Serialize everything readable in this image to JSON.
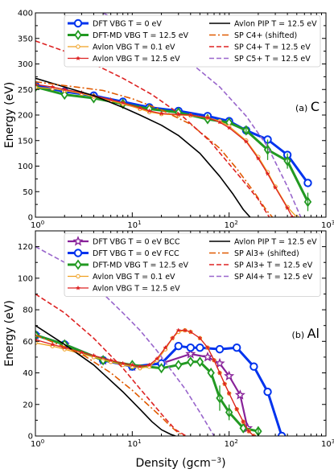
{
  "chart_data": [
    {
      "type": "line",
      "panel_label": "(a) C",
      "xlabel": "",
      "ylabel": "Energy (eV)",
      "xscale": "log",
      "xlim": [
        1,
        1000
      ],
      "ylim": [
        0,
        400
      ],
      "x_ticks": [
        "10^0",
        "10^1",
        "10^2",
        "10^3"
      ],
      "y_ticks": [
        0,
        50,
        100,
        150,
        200,
        250,
        300,
        350,
        400
      ],
      "grid": false,
      "legend_position": "top",
      "legend": [
        "DFT VBG T = 0 eV",
        "DFT-MD VBG T = 12.5 eV",
        "Avlon VBG T = 0.1 eV",
        "Avlon VBG T = 12.5 eV",
        "Avlon PIP T = 12.5 eV",
        "SP C4+ (shifted)",
        "SP C4+ T = 12.5 eV",
        "SP C5+ T = 12.5 eV"
      ],
      "series": [
        {
          "name": "DFT VBG T = 0 eV",
          "color": "#0033ee",
          "style": "solid",
          "marker": "circle",
          "x": [
            1,
            2,
            4,
            8,
            15,
            30,
            60,
            100,
            150,
            250,
            400,
            650
          ],
          "y": [
            258,
            246,
            238,
            226,
            215,
            208,
            198,
            188,
            170,
            152,
            122,
            67
          ]
        },
        {
          "name": "DFT-MD VBG T = 12.5 eV",
          "color": "#229922",
          "style": "solid",
          "marker": "diamond",
          "x": [
            1,
            2,
            4,
            8,
            15,
            30,
            60,
            100,
            150,
            250,
            400,
            650
          ],
          "y": [
            255,
            240,
            233,
            222,
            212,
            205,
            192,
            185,
            170,
            132,
            110,
            30
          ]
        },
        {
          "name": "Avlon VBG T = 0.1 eV",
          "color": "#f0a020",
          "style": "solid",
          "marker": "small-circle",
          "x": [
            1,
            1.5,
            2,
            3,
            4,
            6,
            8,
            12,
            15,
            20,
            30,
            40,
            60,
            80,
            100,
            150,
            200,
            250,
            300,
            400,
            500
          ],
          "y": [
            254,
            252,
            248,
            242,
            236,
            228,
            222,
            212,
            206,
            202,
            200,
            199,
            195,
            188,
            178,
            150,
            118,
            88,
            60,
            20,
            0
          ]
        },
        {
          "name": "Avlon VBG T = 12.5 eV",
          "color": "#dd2222",
          "style": "solid",
          "marker": "small-star",
          "x": [
            1,
            1.5,
            2,
            3,
            4,
            6,
            8,
            12,
            15,
            20,
            30,
            40,
            60,
            80,
            100,
            150,
            200,
            250,
            300,
            400,
            450
          ],
          "y": [
            260,
            255,
            250,
            244,
            238,
            230,
            224,
            214,
            208,
            203,
            201,
            200,
            195,
            186,
            175,
            148,
            115,
            85,
            58,
            18,
            0
          ]
        },
        {
          "name": "Avlon PIP T = 12.5 eV",
          "color": "#000000",
          "style": "solid",
          "marker": "none",
          "x": [
            1,
            2,
            4,
            8,
            12,
            20,
            30,
            50,
            80,
            110,
            140,
            165
          ],
          "y": [
            272,
            255,
            238,
            215,
            200,
            180,
            160,
            125,
            80,
            45,
            15,
            0
          ]
        },
        {
          "name": "SP C4+ (shifted)",
          "color": "#e05a00",
          "style": "dashdot",
          "marker": "none",
          "x": [
            1,
            5,
            10,
            20,
            40,
            80,
            120,
            180,
            240,
            280
          ],
          "y": [
            265,
            248,
            232,
            210,
            182,
            135,
            95,
            50,
            15,
            0
          ]
        },
        {
          "name": "SP C4+ T = 12.5 eV",
          "color": "#dd2222",
          "style": "dashed",
          "marker": "none",
          "x": [
            1,
            2,
            4,
            8,
            16,
            32,
            64,
            128,
            200,
            260
          ],
          "y": [
            345,
            325,
            300,
            272,
            240,
            200,
            148,
            80,
            35,
            0
          ]
        },
        {
          "name": "SP C5+ T = 12.5 eV",
          "color": "#9966cc",
          "style": "dashed",
          "marker": "none",
          "x": [
            5,
            10,
            20,
            40,
            80,
            150,
            250,
            400,
            550
          ],
          "y": [
            400,
            370,
            340,
            302,
            255,
            198,
            138,
            60,
            0
          ]
        }
      ],
      "error_bars": [
        {
          "x": 150,
          "y": 170,
          "err": 8
        },
        {
          "x": 250,
          "y": 132,
          "err": 20
        },
        {
          "x": 400,
          "y": 110,
          "err": 15
        },
        {
          "x": 650,
          "y": 30,
          "err": 18
        }
      ]
    },
    {
      "type": "line",
      "panel_label": "(b) Al",
      "xlabel": "Density (gcm−3)",
      "ylabel": "Energy (eV)",
      "xscale": "log",
      "xlim": [
        1,
        1000
      ],
      "ylim": [
        0,
        130
      ],
      "x_ticks": [
        "10^0",
        "10^1",
        "10^2",
        "10^3"
      ],
      "y_ticks": [
        0,
        20,
        40,
        60,
        80,
        100,
        120
      ],
      "grid": false,
      "legend_position": "top",
      "legend": [
        "DFT VBG T = 0 eV BCC",
        "DFT VBG T = 0 eV FCC",
        "DFT-MD VBG T = 12.5 eV",
        "Avlon VBG T = 0.1 eV",
        "Avlon VBG T = 12.5 eV",
        "Avlon PIP T = 12.5 eV",
        "SP Al3+ (shifted)",
        "SP Al3+ T = 12.5 eV",
        "SP Al4+ T = 12.5 eV"
      ],
      "series": [
        {
          "name": "DFT VBG T = 0 eV BCC",
          "color": "#882299",
          "style": "solid",
          "marker": "star",
          "x": [
            1,
            2,
            5,
            10,
            20,
            40,
            60,
            80,
            100,
            130,
            155
          ],
          "y": [
            64,
            58,
            48,
            44,
            46,
            52,
            50,
            46,
            38,
            26,
            5
          ]
        },
        {
          "name": "DFT VBG T = 0 eV FCC",
          "color": "#0033ee",
          "style": "solid",
          "marker": "circle",
          "x": [
            1,
            2,
            5,
            10,
            20,
            30,
            40,
            50,
            80,
            120,
            180,
            250,
            350
          ],
          "y": [
            64,
            58,
            48,
            44,
            46,
            57,
            56,
            56,
            55,
            56,
            44,
            28,
            0
          ]
        },
        {
          "name": "DFT-MD VBG T = 12.5 eV",
          "color": "#229922",
          "style": "solid",
          "marker": "diamond",
          "x": [
            1,
            2,
            5,
            10,
            20,
            30,
            40,
            50,
            65,
            80,
            100,
            140,
            200
          ],
          "y": [
            64,
            58,
            48,
            45,
            43,
            45,
            47,
            47,
            40,
            24,
            15,
            5,
            3
          ]
        },
        {
          "name": "Avlon VBG T = 0.1 eV",
          "color": "#f0a020",
          "style": "solid",
          "marker": "small-circle",
          "x": [
            1,
            1.5,
            2,
            3,
            4,
            6,
            8,
            10,
            12,
            15,
            18,
            22,
            26,
            30,
            35,
            40,
            50,
            60,
            70,
            80,
            90,
            100,
            120,
            140,
            160,
            180
          ],
          "y": [
            59,
            57,
            55,
            52,
            50,
            47,
            45,
            44,
            43,
            44,
            48,
            55,
            62,
            66,
            67,
            66,
            62,
            56,
            48,
            40,
            33,
            27,
            17,
            9,
            3,
            0
          ]
        },
        {
          "name": "Avlon VBG T = 12.5 eV",
          "color": "#dd2222",
          "style": "solid",
          "marker": "small-star",
          "x": [
            1,
            1.5,
            2,
            3,
            4,
            6,
            8,
            10,
            12,
            15,
            18,
            22,
            26,
            30,
            35,
            40,
            50,
            60,
            70,
            80,
            90,
            100,
            120,
            140,
            160,
            180
          ],
          "y": [
            61,
            58,
            56,
            53,
            51,
            48,
            46,
            45,
            44,
            45,
            49,
            56,
            62,
            67,
            67,
            66,
            62,
            56,
            48,
            40,
            33,
            27,
            17,
            9,
            3,
            0
          ]
        },
        {
          "name": "Avlon PIP T = 12.5 eV",
          "color": "#000000",
          "style": "solid",
          "marker": "none",
          "x": [
            1,
            2,
            4,
            8,
            12,
            16,
            20,
            25,
            28
          ],
          "y": [
            70,
            58,
            45,
            28,
            17,
            9,
            4,
            1,
            0
          ]
        },
        {
          "name": "SP Al3+ (shifted)",
          "color": "#e05a00",
          "style": "dashdot",
          "marker": "none",
          "x": [
            1,
            3,
            6,
            10,
            15,
            20,
            25,
            30,
            35
          ],
          "y": [
            64,
            52,
            40,
            29,
            19,
            12,
            6,
            2,
            0
          ]
        },
        {
          "name": "SP Al3+ T = 12.5 eV",
          "color": "#dd2222",
          "style": "dashed",
          "marker": "none",
          "x": [
            1,
            2,
            4,
            8,
            12,
            16,
            22,
            28,
            36
          ],
          "y": [
            90,
            78,
            62,
            43,
            30,
            21,
            11,
            4,
            0
          ]
        },
        {
          "name": "SP Al4+ T = 12.5 eV",
          "color": "#9966cc",
          "style": "dashed",
          "marker": "none",
          "x": [
            1,
            2,
            4,
            8,
            12,
            18,
            25,
            35,
            50,
            70
          ],
          "y": [
            120,
            110,
            96,
            78,
            67,
            54,
            42,
            30,
            15,
            0
          ]
        }
      ],
      "error_bars": [
        {
          "x": 80,
          "y": 24,
          "err": 8
        },
        {
          "x": 100,
          "y": 15,
          "err": 5
        },
        {
          "x": 200,
          "y": 3,
          "err": 3
        }
      ]
    }
  ]
}
